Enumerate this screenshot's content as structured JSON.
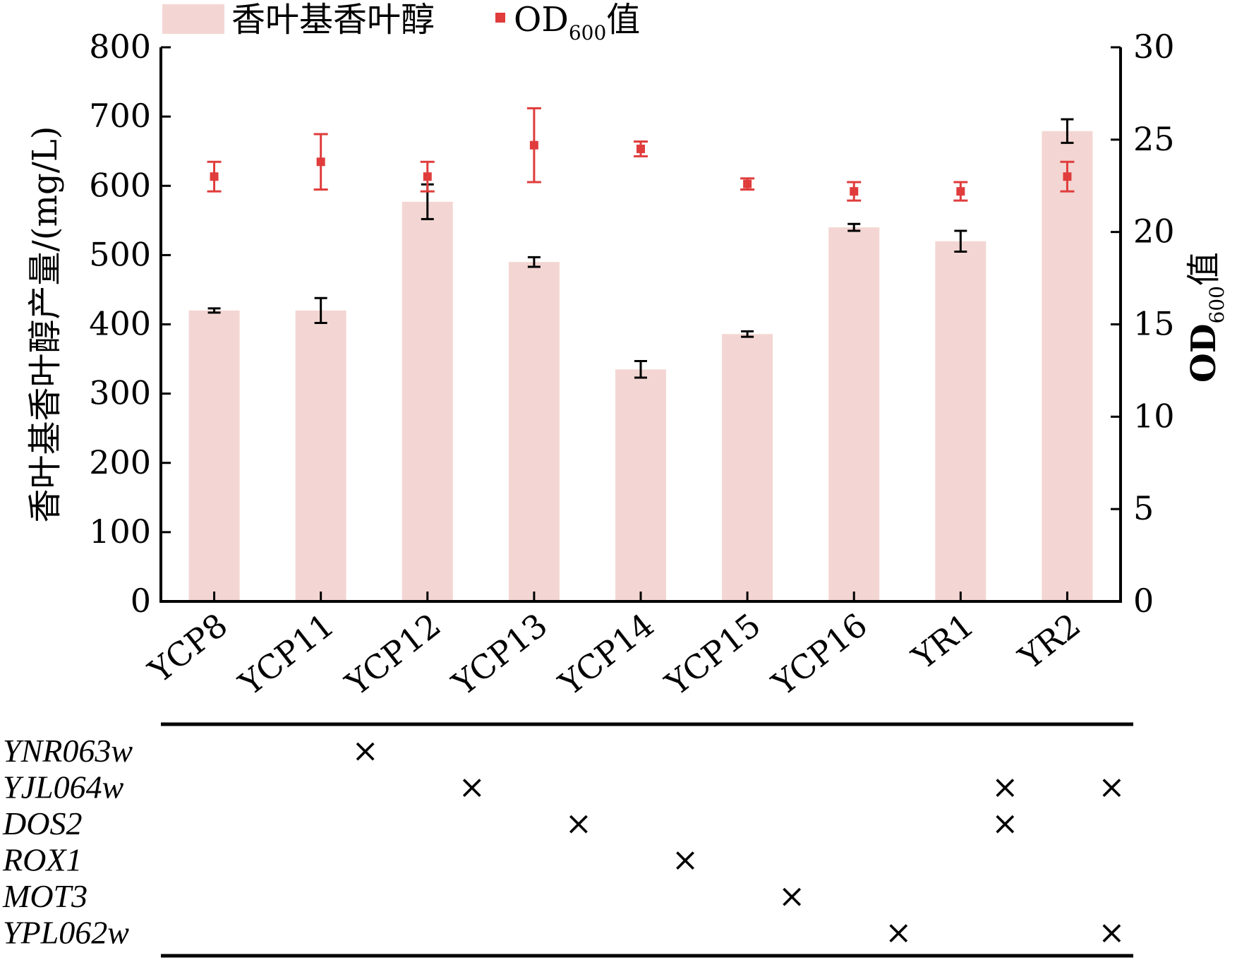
{
  "chart_data": {
    "type": "bar",
    "categories": [
      "YCP8",
      "YCP11",
      "YCP12",
      "YCP13",
      "YCP14",
      "YCP15",
      "YCP16",
      "YR1",
      "YR2"
    ],
    "series": [
      {
        "name": "香叶基香叶醇",
        "axis": "left",
        "mark": "bar",
        "color": "#f3d6d3",
        "values": [
          420,
          420,
          577,
          490,
          335,
          386,
          540,
          520,
          679
        ],
        "errors": [
          3,
          18,
          25,
          7,
          12,
          4,
          5,
          15,
          17
        ]
      },
      {
        "name": "OD",
        "name_sub": "600",
        "name_suffix": "值",
        "axis": "right",
        "mark": "point",
        "color": "#e03c3c",
        "values": [
          23.0,
          23.8,
          23.0,
          24.7,
          24.5,
          22.6,
          22.2,
          22.2,
          23.0
        ],
        "errors": [
          0.8,
          1.5,
          0.8,
          2.0,
          0.4,
          0.3,
          0.5,
          0.5,
          0.8
        ]
      }
    ],
    "ylabel": "香叶基香叶醇产量/(mg/L)",
    "y2label": {
      "main": "OD",
      "sub": "600",
      "suffix": "值"
    },
    "ylim": [
      0,
      800
    ],
    "yticks": [
      "0",
      "100",
      "200",
      "300",
      "400",
      "500",
      "600",
      "700",
      "800"
    ],
    "y2lim": [
      0,
      30
    ],
    "y2ticks": [
      "0",
      "5",
      "10",
      "15",
      "20",
      "25",
      "30"
    ],
    "legend": "top-left",
    "grid": false,
    "knockout_table": {
      "genes": [
        "YNR063w",
        "YJL064w",
        "DOS2",
        "ROX1",
        "MOT3",
        "YPL062w"
      ],
      "mark": "×",
      "marks": [
        [
          "YCP11"
        ],
        [
          "YCP12",
          "YR1",
          "YR2"
        ],
        [
          "YCP13",
          "YR1"
        ],
        [
          "YCP14"
        ],
        [
          "YCP15"
        ],
        [
          "YCP16",
          "YR2"
        ]
      ]
    }
  }
}
